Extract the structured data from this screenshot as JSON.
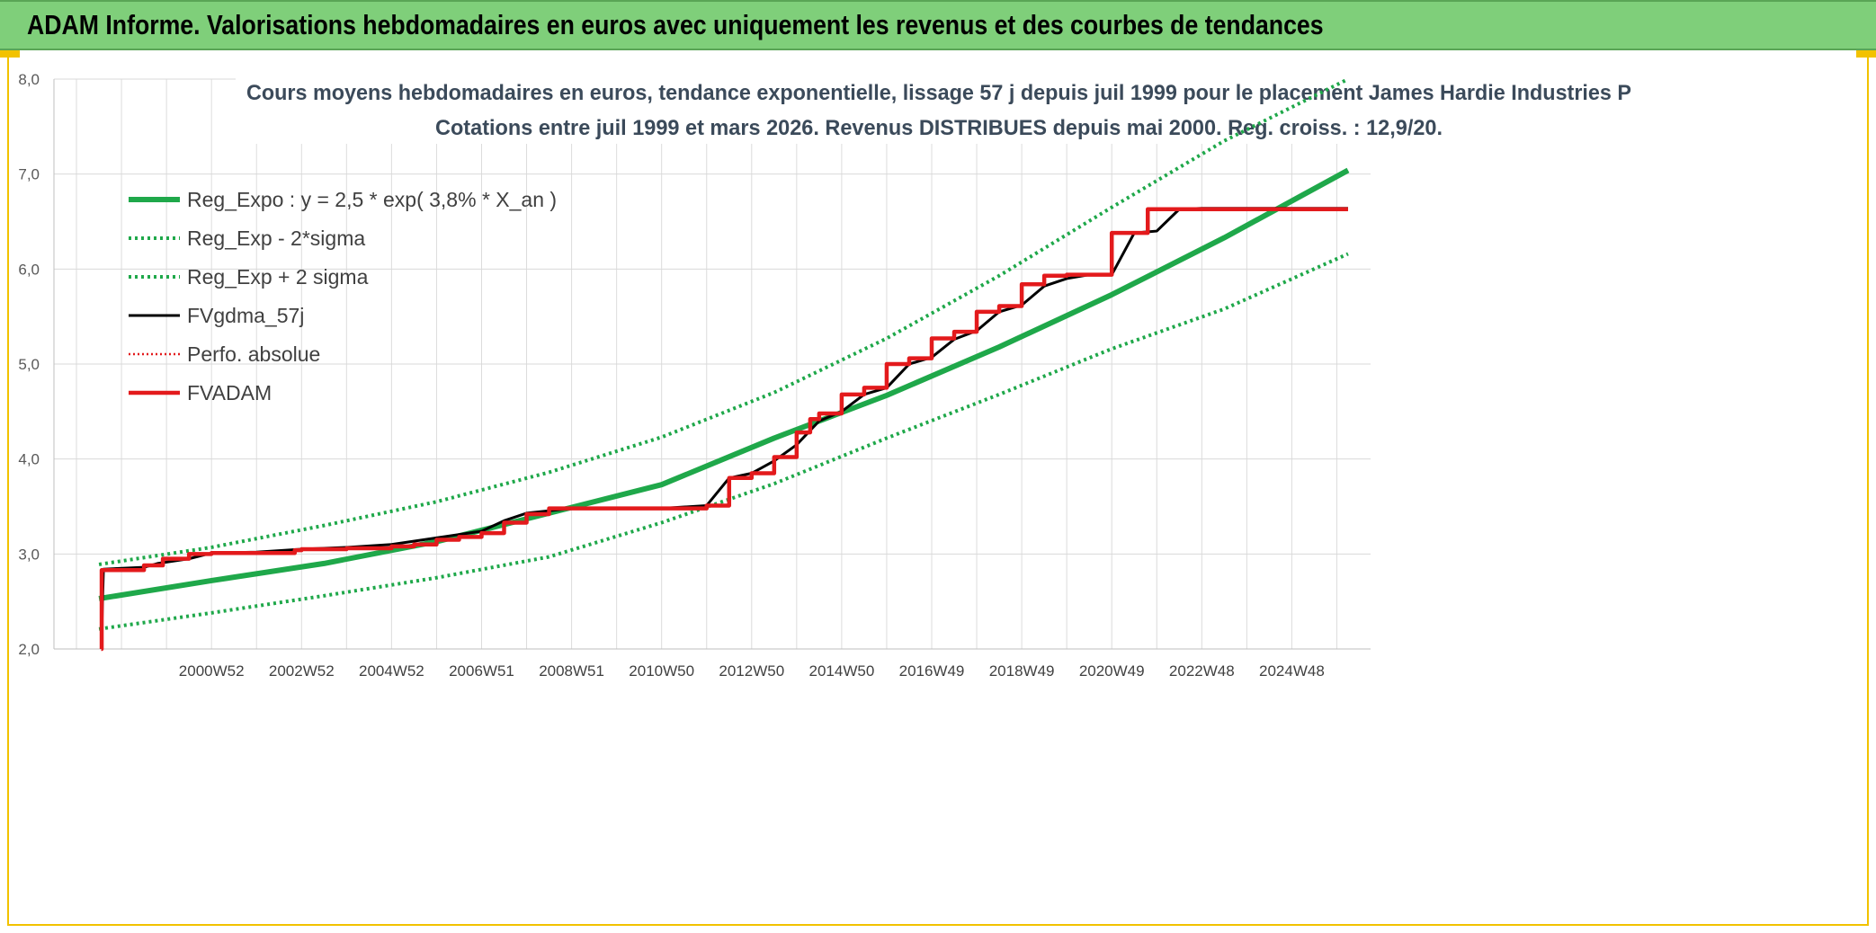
{
  "banner": {
    "title": "ADAM Informe. Valorisations hebdomadaires en euros avec uniquement les revenus et des courbes de tendances",
    "color": "#7fcf7a"
  },
  "chart_data": {
    "type": "line",
    "title_line1": "Cours moyens hebdomadaires en euros, tendance exponentielle, lissage 57 j depuis juil 1999 pour le placement James Hardie Industries P",
    "title_line2": "Cotations entre juil 1999 et mars 2026. Revenus DISTRIBUES depuis mai 2000. Reg. croiss. : 12,9/20.",
    "x_range": [
      1997.5,
      2026.75
    ],
    "ylim": [
      2.0,
      8.0
    ],
    "y_ticks": [
      "2,0",
      "3,0",
      "4,0",
      "5,0",
      "6,0",
      "7,0",
      "8,0"
    ],
    "x_tick_labels": [
      "2000W52",
      "2002W52",
      "2004W52",
      "2006W51",
      "2008W51",
      "2010W50",
      "2012W50",
      "2014W50",
      "2016W49",
      "2018W49",
      "2020W49",
      "2022W48",
      "2024W48"
    ],
    "x_tick_positions": [
      2001.0,
      2003.0,
      2005.0,
      2007.0,
      2009.0,
      2011.0,
      2013.0,
      2015.0,
      2017.0,
      2019.0,
      2021.0,
      2023.0,
      2025.0
    ],
    "grid": true,
    "legend_position": "top-left",
    "series": [
      {
        "name": "Reg_Expo : y = 2,5 * exp( 3,8% *  X_an )",
        "style": "solid-thick",
        "color": "#1fa84a",
        "x": [
          1998.5,
          2001.0,
          2003.5,
          2006.0,
          2008.5,
          2011.0,
          2013.5,
          2016.0,
          2018.5,
          2021.0,
          2023.5,
          2026.25
        ],
        "values": [
          2.53,
          2.72,
          2.9,
          3.13,
          3.43,
          3.73,
          4.22,
          4.67,
          5.18,
          5.73,
          6.33,
          7.04
        ]
      },
      {
        "name": "Reg_Exp - 2*sigma",
        "style": "dotted",
        "color": "#1fa84a",
        "x": [
          1998.5,
          2001.0,
          2003.5,
          2006.0,
          2008.5,
          2011.0,
          2013.5,
          2016.0,
          2018.5,
          2021.0,
          2023.5,
          2026.25
        ],
        "values": [
          2.21,
          2.38,
          2.56,
          2.75,
          2.97,
          3.33,
          3.74,
          4.22,
          4.68,
          5.16,
          5.58,
          6.16
        ]
      },
      {
        "name": "Reg_Exp + 2 sigma",
        "style": "dotted",
        "color": "#1fa84a",
        "x": [
          1998.5,
          2001.0,
          2003.5,
          2006.0,
          2008.5,
          2011.0,
          2013.5,
          2016.0,
          2018.5,
          2021.0,
          2023.5,
          2026.25
        ],
        "values": [
          2.89,
          3.07,
          3.3,
          3.55,
          3.86,
          4.23,
          4.7,
          5.27,
          5.93,
          6.65,
          7.35,
          8.0
        ]
      },
      {
        "name": "FVgdma_57j",
        "style": "solid",
        "color": "#000000",
        "x": [
          1998.55,
          1998.6,
          1999.5,
          1999.8,
          2000.5,
          2001.0,
          2002.0,
          2003.0,
          2004.0,
          2005.0,
          2006.0,
          2007.0,
          2007.5,
          2008.0,
          2009.0,
          2010.0,
          2011.0,
          2012.0,
          2012.5,
          2013.0,
          2013.5,
          2014.0,
          2014.5,
          2015.0,
          2015.5,
          2016.0,
          2016.5,
          2017.0,
          2017.5,
          2018.0,
          2018.5,
          2019.0,
          2019.5,
          2020.0,
          2020.5,
          2021.0,
          2021.5,
          2022.0,
          2022.5,
          2023.0,
          2024.0,
          2025.0,
          2026.25
        ],
        "values": [
          2.0,
          2.84,
          2.86,
          2.9,
          2.95,
          3.01,
          3.02,
          3.05,
          3.07,
          3.1,
          3.17,
          3.24,
          3.35,
          3.43,
          3.48,
          3.48,
          3.48,
          3.51,
          3.8,
          3.85,
          3.98,
          4.15,
          4.4,
          4.5,
          4.68,
          4.75,
          5.0,
          5.07,
          5.26,
          5.35,
          5.55,
          5.62,
          5.82,
          5.9,
          5.94,
          5.94,
          6.38,
          6.4,
          6.63,
          6.64,
          6.64,
          6.64,
          6.64
        ]
      },
      {
        "name": "Perfo. absolue",
        "style": "dotted",
        "color": "#e31a1c",
        "x": [],
        "values": []
      },
      {
        "name": "FVADAM",
        "style": "step-thick",
        "color": "#e31a1c",
        "x": [
          1998.55,
          1998.56,
          1999.5,
          1999.92,
          2000.5,
          2001.0,
          2002.85,
          2003.0,
          2004.0,
          2005.0,
          2005.5,
          2006.0,
          2006.5,
          2007.0,
          2007.5,
          2008.0,
          2008.5,
          2009.0,
          2010.0,
          2011.0,
          2012.0,
          2012.5,
          2013.0,
          2013.5,
          2014.0,
          2014.3,
          2014.5,
          2015.0,
          2015.5,
          2016.0,
          2016.5,
          2017.0,
          2017.5,
          2018.0,
          2018.5,
          2019.0,
          2019.5,
          2020.0,
          2020.5,
          2021.0,
          2021.8,
          2022.5,
          2023.0,
          2024.0,
          2025.0,
          2026.25
        ],
        "values": [
          2.0,
          2.83,
          2.88,
          2.95,
          3.0,
          3.01,
          3.04,
          3.05,
          3.06,
          3.08,
          3.1,
          3.15,
          3.18,
          3.22,
          3.33,
          3.42,
          3.48,
          3.48,
          3.48,
          3.48,
          3.51,
          3.8,
          3.85,
          4.02,
          4.28,
          4.42,
          4.48,
          4.68,
          4.75,
          5.0,
          5.06,
          5.27,
          5.34,
          5.55,
          5.61,
          5.84,
          5.93,
          5.94,
          5.94,
          6.38,
          6.63,
          6.63,
          6.63,
          6.63,
          6.63,
          6.63
        ]
      }
    ]
  }
}
